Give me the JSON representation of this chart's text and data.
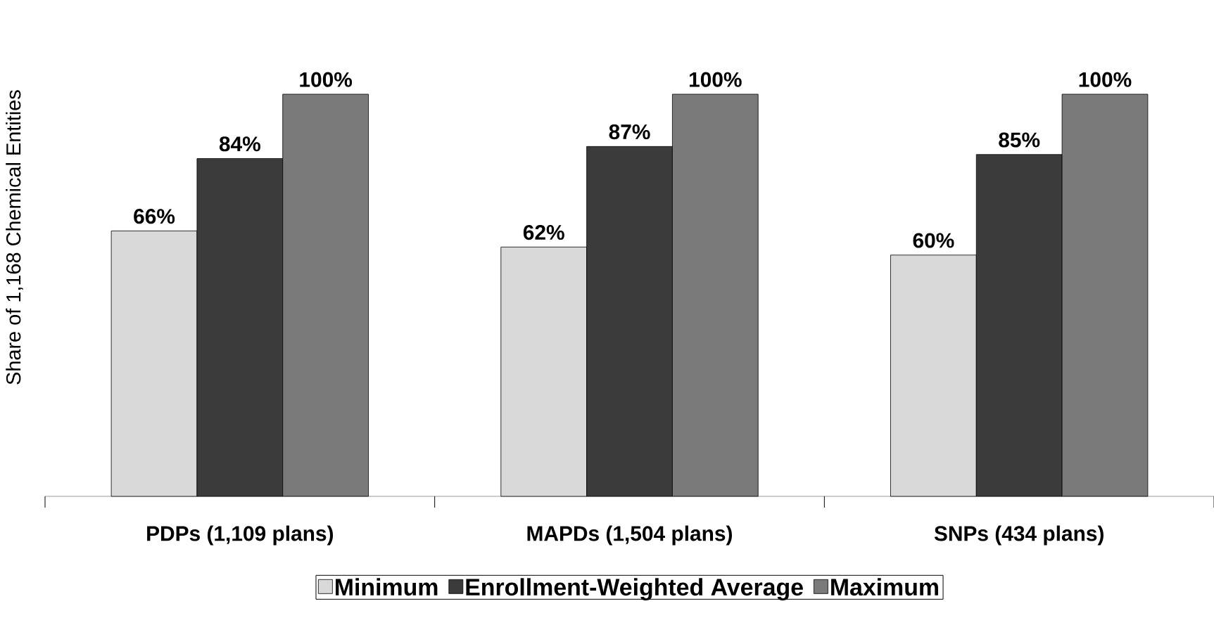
{
  "chart_data": {
    "type": "bar",
    "ylabel": "Share of 1,168 Chemical Entities",
    "categories": [
      "PDPs (1,109 plans)",
      "MAPDs (1,504 plans)",
      "SNPs (434 plans)"
    ],
    "series": [
      {
        "name": "Minimum",
        "color": "#d9d9d9",
        "values": [
          66,
          62,
          60
        ],
        "value_labels": [
          "66%",
          "62%",
          "60%"
        ]
      },
      {
        "name": "Enrollment-Weighted Average",
        "color": "#3b3b3b",
        "values": [
          84,
          87,
          85
        ],
        "value_labels": [
          "84%",
          "87%",
          "85%"
        ]
      },
      {
        "name": "Maximum",
        "color": "#7a7a7a",
        "values": [
          100,
          100,
          100
        ],
        "value_labels": [
          "100%",
          "100%",
          "100%"
        ]
      }
    ],
    "legend": "bottom"
  }
}
